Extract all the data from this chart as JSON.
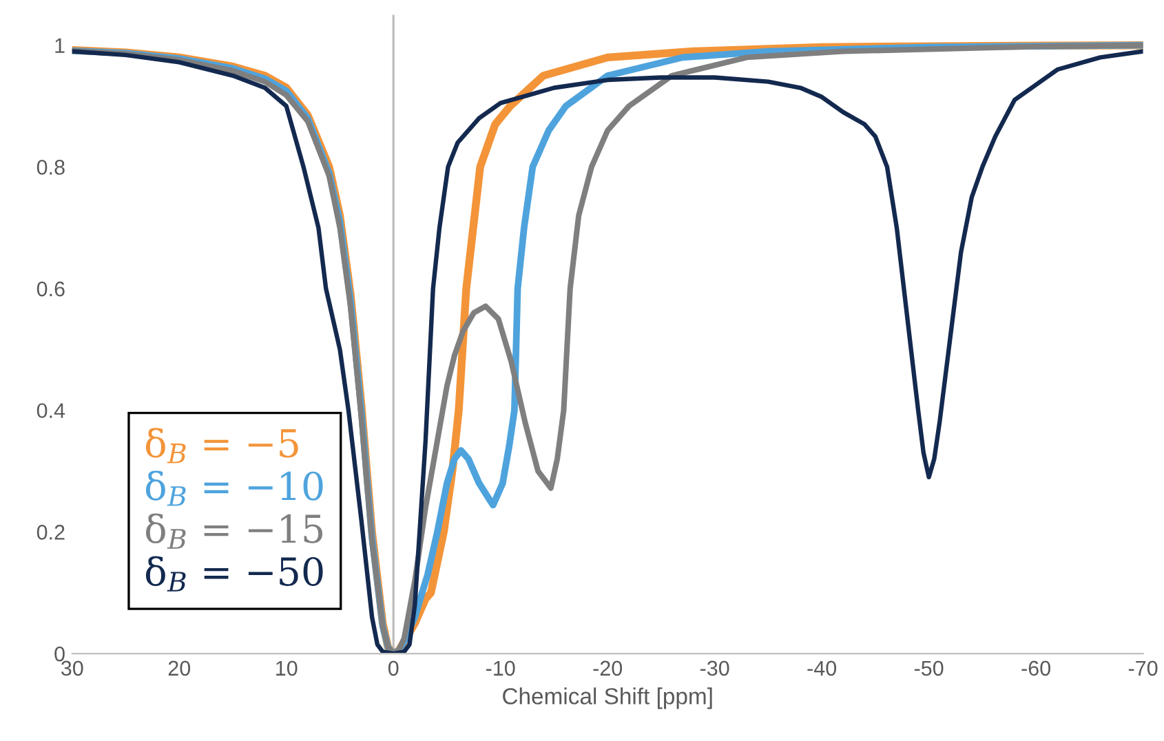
{
  "chart_data": {
    "type": "line",
    "xlabel": "Chemical Shift [ppm]",
    "xlim": [
      30,
      -70
    ],
    "xticks": [
      30,
      20,
      10,
      0,
      -10,
      -20,
      -30,
      -40,
      -50,
      -60,
      -70
    ],
    "ylim": [
      0,
      1.05
    ],
    "yticks": [
      0,
      0.2,
      0.4,
      0.6,
      0.8,
      1
    ],
    "grid": false,
    "legend": "bottom left",
    "line_style": "solid",
    "marker": "none",
    "ref_lines": [
      {
        "axis": "x",
        "value": 0,
        "color": "#bfbfbf"
      }
    ],
    "series": [
      {
        "name": "δ$_{B}$ = −5",
        "color": "#f39439",
        "x": [
          30,
          25,
          20,
          15,
          12,
          10,
          8,
          6,
          5,
          4,
          3,
          2,
          1,
          0.5,
          0,
          -0.5,
          -1,
          -2,
          -3,
          -3.5,
          -4.7,
          -5.5,
          -6.1,
          -6.8,
          -8.1,
          -9.5,
          -10.9,
          -14,
          -20,
          -28,
          -40,
          -55,
          -70
        ],
        "values": [
          0.992,
          0.988,
          0.98,
          0.965,
          0.95,
          0.93,
          0.885,
          0.8,
          0.72,
          0.59,
          0.41,
          0.2,
          0.05,
          0.01,
          0.0,
          0.005,
          0.02,
          0.05,
          0.09,
          0.1,
          0.2,
          0.3,
          0.4,
          0.6,
          0.8,
          0.87,
          0.9,
          0.95,
          0.98,
          0.99,
          0.997,
          0.999,
          1.0
        ]
      },
      {
        "name": "δ$_{B}$ = −10",
        "color": "#4ea3dd",
        "x": [
          30,
          25,
          20,
          15,
          12,
          10,
          8,
          6,
          5,
          4,
          3,
          2,
          1,
          0.5,
          0,
          -0.5,
          -1,
          -2,
          -2.5,
          -3.2,
          -4.1,
          -5,
          -5.7,
          -6.3,
          -7,
          -8,
          -9.3,
          -10.2,
          -10.8,
          -11.3,
          -11.6,
          -12.2,
          -13,
          -14.5,
          -16.1,
          -20,
          -27,
          -35,
          -50,
          -70
        ],
        "values": [
          0.991,
          0.987,
          0.978,
          0.962,
          0.945,
          0.925,
          0.88,
          0.79,
          0.71,
          0.58,
          0.4,
          0.19,
          0.045,
          0.01,
          0.0,
          0.005,
          0.02,
          0.06,
          0.09,
          0.13,
          0.2,
          0.28,
          0.32,
          0.334,
          0.32,
          0.28,
          0.244,
          0.28,
          0.34,
          0.4,
          0.6,
          0.7,
          0.8,
          0.86,
          0.9,
          0.95,
          0.98,
          0.99,
          0.997,
          1.0
        ]
      },
      {
        "name": "δ$_{B}$ = −15",
        "color": "#7f7f7f",
        "x": [
          30,
          25,
          20,
          15,
          12,
          10,
          8,
          6,
          5,
          4,
          3,
          2,
          1,
          0.5,
          0,
          -0.5,
          -1,
          -2,
          -3,
          -4,
          -5,
          -5.7,
          -6.5,
          -7.5,
          -8.6,
          -9.8,
          -11,
          -12.3,
          -13.5,
          -14.7,
          -15.3,
          -15.9,
          -16.5,
          -17.3,
          -18.5,
          -20,
          -22,
          -26,
          -33,
          -42,
          -60,
          -70
        ],
        "values": [
          0.991,
          0.986,
          0.976,
          0.958,
          0.94,
          0.918,
          0.875,
          0.785,
          0.7,
          0.57,
          0.39,
          0.185,
          0.045,
          0.01,
          0.0,
          0.005,
          0.025,
          0.12,
          0.24,
          0.34,
          0.44,
          0.49,
          0.53,
          0.56,
          0.571,
          0.55,
          0.48,
          0.38,
          0.3,
          0.272,
          0.32,
          0.4,
          0.6,
          0.72,
          0.8,
          0.86,
          0.9,
          0.95,
          0.98,
          0.99,
          0.998,
          1.0
        ]
      },
      {
        "name": "δ$_{B}$ = −50",
        "color": "#13294f",
        "x": [
          30,
          25,
          20,
          15,
          12,
          10,
          8.4,
          7,
          6.3,
          5,
          4.2,
          3,
          2,
          1.5,
          1,
          0,
          -1,
          -1.5,
          -2,
          -3,
          -3.7,
          -4.3,
          -5.1,
          -6,
          -8,
          -10,
          -15,
          -20,
          -25,
          -30,
          -35,
          -38,
          -40,
          -42,
          -44,
          -45,
          -46.1,
          -47,
          -48,
          -49,
          -49.5,
          -50,
          -50.5,
          -51,
          -52,
          -53,
          -54,
          -55,
          -56.2,
          -58,
          -62,
          -66,
          -70
        ],
        "values": [
          0.99,
          0.984,
          0.972,
          0.95,
          0.93,
          0.9,
          0.8,
          0.7,
          0.6,
          0.5,
          0.4,
          0.22,
          0.06,
          0.015,
          0.003,
          0.0,
          0.003,
          0.015,
          0.08,
          0.35,
          0.6,
          0.7,
          0.8,
          0.84,
          0.88,
          0.905,
          0.93,
          0.943,
          0.947,
          0.947,
          0.94,
          0.93,
          0.915,
          0.89,
          0.87,
          0.85,
          0.8,
          0.7,
          0.55,
          0.4,
          0.33,
          0.29,
          0.32,
          0.38,
          0.52,
          0.66,
          0.75,
          0.8,
          0.85,
          0.91,
          0.96,
          0.98,
          0.99
        ]
      }
    ]
  }
}
